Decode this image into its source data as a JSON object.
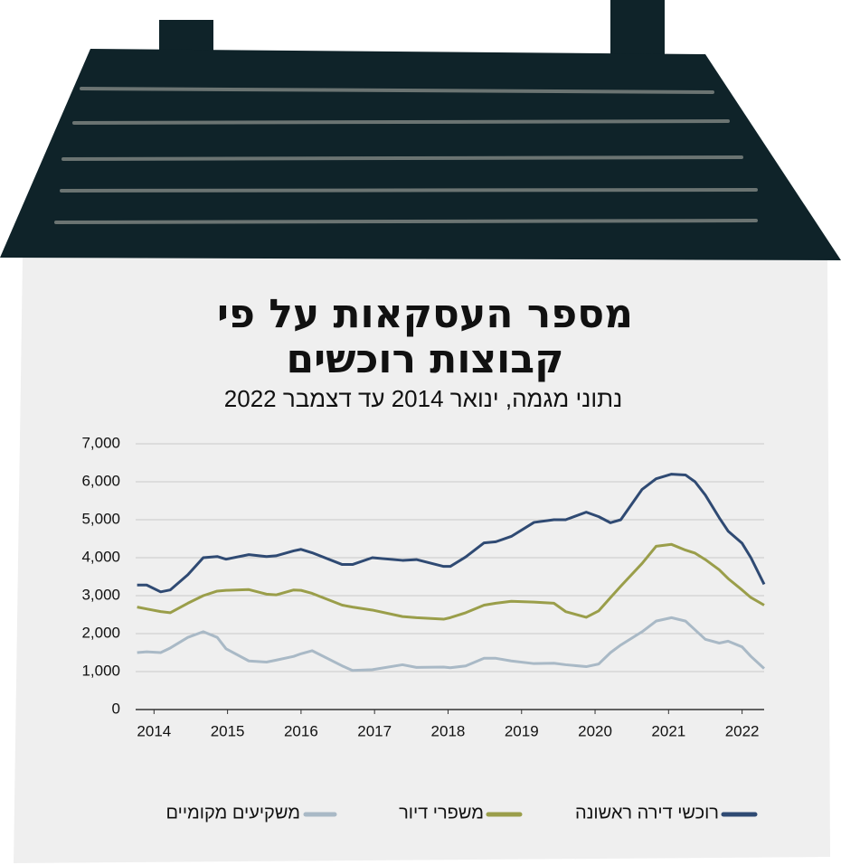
{
  "chart_data": {
    "type": "line",
    "title": "מספר העסקאות על פי",
    "title_line2": "קבוצות  רוכשים",
    "subtitle": "נתוני מגמה, ינואר 2014 עד דצמבר 2022",
    "x": [
      2013.77,
      2013.9,
      2014.09,
      2014.22,
      2014.46,
      2014.67,
      2014.86,
      2014.98,
      2015.29,
      2015.53,
      2015.66,
      2015.9,
      2016.0,
      2016.15,
      2016.56,
      2016.7,
      2016.97,
      2017.38,
      2017.57,
      2017.94,
      2018.03,
      2018.24,
      2018.49,
      2018.65,
      2018.86,
      2019.17,
      2019.44,
      2019.6,
      2019.88,
      2020.05,
      2020.21,
      2020.35,
      2020.64,
      2020.83,
      2021.04,
      2021.23,
      2021.36,
      2021.5,
      2021.69,
      2021.81,
      2022.0,
      2022.12,
      2022.3
    ],
    "series": [
      {
        "name": "רוכשי דירה ראשונה",
        "color": "#2f4a73",
        "values": [
          3280,
          3280,
          3100,
          3150,
          3550,
          4000,
          4030,
          3960,
          4080,
          4030,
          4050,
          4180,
          4220,
          4130,
          3820,
          3820,
          4000,
          3930,
          3950,
          3770,
          3770,
          4020,
          4390,
          4420,
          4560,
          4930,
          5000,
          5000,
          5200,
          5080,
          4920,
          5000,
          5800,
          6080,
          6200,
          6180,
          6000,
          5650,
          5050,
          4700,
          4380,
          4000,
          3300
        ]
      },
      {
        "name": "משפרי דיור",
        "color": "#9a9e4a",
        "values": [
          2700,
          2650,
          2580,
          2550,
          2800,
          3000,
          3120,
          3140,
          3160,
          3040,
          3020,
          3150,
          3140,
          3060,
          2750,
          2700,
          2620,
          2450,
          2420,
          2380,
          2420,
          2550,
          2750,
          2800,
          2850,
          2830,
          2800,
          2580,
          2430,
          2600,
          2950,
          3250,
          3850,
          4300,
          4350,
          4200,
          4120,
          3950,
          3680,
          3450,
          3150,
          2950,
          2750
        ]
      },
      {
        "name": "משקיעים מקומיים",
        "color": "#a9b9c6",
        "values": [
          1500,
          1520,
          1500,
          1620,
          1900,
          2050,
          1900,
          1600,
          1280,
          1250,
          1300,
          1400,
          1470,
          1550,
          1150,
          1030,
          1050,
          1180,
          1110,
          1120,
          1100,
          1150,
          1350,
          1350,
          1280,
          1210,
          1220,
          1180,
          1130,
          1200,
          1500,
          1700,
          2050,
          2330,
          2420,
          2330,
          2100,
          1850,
          1750,
          1800,
          1650,
          1400,
          1080
        ]
      }
    ],
    "xlim": [
      2013.75,
      2022.3
    ],
    "xticks": [
      2014,
      2015,
      2016,
      2017,
      2018,
      2019,
      2020,
      2021,
      2022
    ],
    "ylim": [
      0,
      7000
    ],
    "yticks": [
      0,
      {
        "value": 1000,
        "label": "1,000"
      },
      {
        "value": 2000,
        "label": "2,000"
      },
      {
        "value": 3000,
        "label": "3,000"
      },
      {
        "value": 4000,
        "label": "4,000"
      },
      {
        "value": 5000,
        "label": "5,000"
      },
      {
        "value": 6000,
        "label": "6,000"
      },
      {
        "value": 7000,
        "label": "7,000"
      }
    ],
    "grid": true
  }
}
